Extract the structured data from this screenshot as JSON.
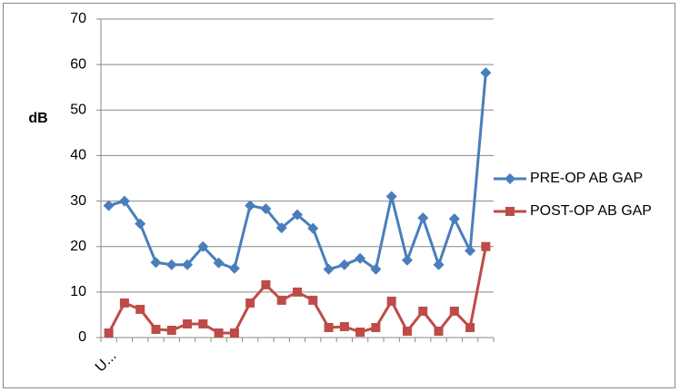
{
  "chart_data": {
    "type": "line",
    "y_label": "dB",
    "categories": [
      "U...",
      null,
      null,
      null,
      null,
      null,
      null,
      null,
      null,
      null,
      null,
      null,
      null,
      null,
      null,
      null,
      null,
      null,
      null,
      null,
      null,
      null,
      null,
      null,
      null
    ],
    "series": [
      {
        "name": "PRE-OP AB GAP",
        "color": "#4a7ebb",
        "marker": "diamond",
        "values": [
          29,
          30,
          25,
          16.5,
          16,
          16,
          20,
          16.4,
          15.2,
          29,
          28.3,
          24.1,
          27,
          24,
          15,
          16,
          17.4,
          15,
          31,
          17,
          26.3,
          16,
          26.1,
          19.1,
          58.2
        ]
      },
      {
        "name": "POST-OP AB GAP",
        "color": "#be4b48",
        "marker": "square",
        "values": [
          1,
          7.6,
          6.2,
          1.8,
          1.6,
          3,
          3,
          1,
          1,
          7.6,
          11.6,
          8.2,
          10,
          8.2,
          2.2,
          2.4,
          1.2,
          2.2,
          8,
          1.4,
          5.8,
          1.4,
          5.8,
          2.2,
          20
        ]
      }
    ],
    "ylim": [
      0,
      70
    ],
    "yticks": [
      0,
      10,
      20,
      30,
      40,
      50,
      60,
      70
    ],
    "grid": true,
    "legend": "right"
  }
}
